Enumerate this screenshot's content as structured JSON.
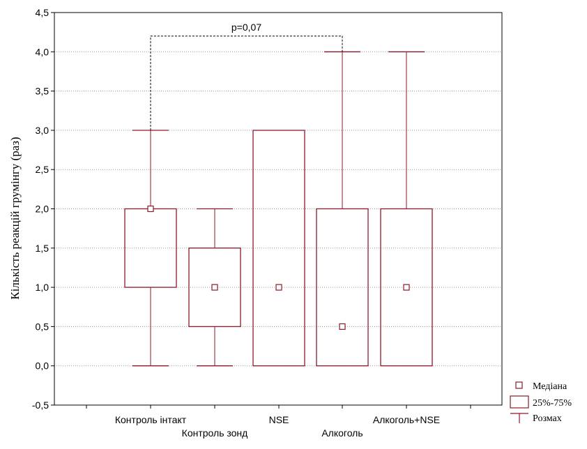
{
  "colors": {
    "box_stroke": "#8b1a2a",
    "grid": "#9a9a9a",
    "axis": "#000000",
    "annotation": "#000000"
  },
  "chart_data": {
    "type": "box",
    "ylabel": "Кількість реакцій грумінгу (раз)",
    "ylim": [
      -0.5,
      4.5
    ],
    "yticks": [
      -0.5,
      0.0,
      0.5,
      1.0,
      1.5,
      2.0,
      2.5,
      3.0,
      3.5,
      4.0,
      4.5
    ],
    "ytick_labels": [
      "-0,5",
      "0,0",
      "0,5",
      "1,0",
      "1,5",
      "2,0",
      "2,5",
      "3,0",
      "3,5",
      "4,0",
      "4,5"
    ],
    "grid": true,
    "legend_placement": "bottom-right",
    "categories": [
      {
        "label": "Контроль інтакт",
        "min": 0,
        "q1": 1.0,
        "median": 2.0,
        "q3": 2.0,
        "max": 3.0
      },
      {
        "label": "Контроль зонд",
        "min": 0,
        "q1": 0.5,
        "median": 1.0,
        "q3": 1.5,
        "max": 2.0
      },
      {
        "label": "NSE",
        "min": 0,
        "q1": 0.0,
        "median": 1.0,
        "q3": 3.0,
        "max": 3.0
      },
      {
        "label": "Алкоголь",
        "min": 0,
        "q1": 0.0,
        "median": 0.5,
        "q3": 2.0,
        "max": 4.0
      },
      {
        "label": "Алкоголь+NSE",
        "min": 0,
        "q1": 0.0,
        "median": 1.0,
        "q3": 2.0,
        "max": 4.0
      }
    ],
    "annotations": [
      {
        "text": "p=0,07",
        "from_category": 0,
        "to_category": 3,
        "y": 4.2
      }
    ],
    "legend": [
      {
        "symbol": "median",
        "label": "Медіана"
      },
      {
        "symbol": "box",
        "label": "25%-75%"
      },
      {
        "symbol": "whisker",
        "label": "Розмах"
      }
    ]
  }
}
